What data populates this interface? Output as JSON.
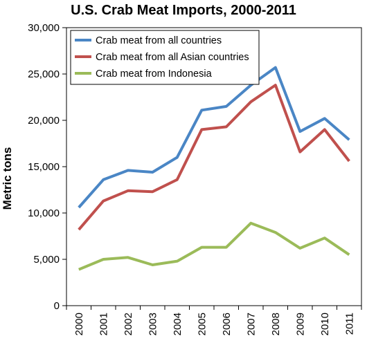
{
  "chart_data": {
    "type": "line",
    "title": "U.S. Crab Meat Imports, 2000-2011",
    "ylabel": "Metric tons",
    "xlabel": "",
    "categories": [
      "2000",
      "2001",
      "2002",
      "2003",
      "2004",
      "2005",
      "2006",
      "2007",
      "2008",
      "2009",
      "2010",
      "2011"
    ],
    "ylim": [
      0,
      30000
    ],
    "yticks": [
      0,
      5000,
      10000,
      15000,
      20000,
      25000,
      30000
    ],
    "ytick_labels": [
      "0",
      "5,000",
      "10,000",
      "15,000",
      "20,000",
      "25,000",
      "30,000"
    ],
    "grid": false,
    "legend_position": "top-left",
    "series": [
      {
        "name": "Crab meat from all countries",
        "color": "#4a86c5",
        "values": [
          10600,
          13600,
          14600,
          14400,
          16000,
          21100,
          21500,
          23800,
          25700,
          18800,
          20200,
          17900
        ]
      },
      {
        "name": "Crab meat from all Asian countries",
        "color": "#c0504d",
        "values": [
          8200,
          11300,
          12400,
          12300,
          13600,
          19000,
          19300,
          22000,
          23800,
          16600,
          19000,
          15600
        ]
      },
      {
        "name": "Crab meat from Indonesia",
        "color": "#9bbb59",
        "values": [
          3900,
          5000,
          5200,
          4400,
          4800,
          6300,
          6300,
          8900,
          7900,
          6200,
          7300,
          5500
        ]
      }
    ]
  }
}
